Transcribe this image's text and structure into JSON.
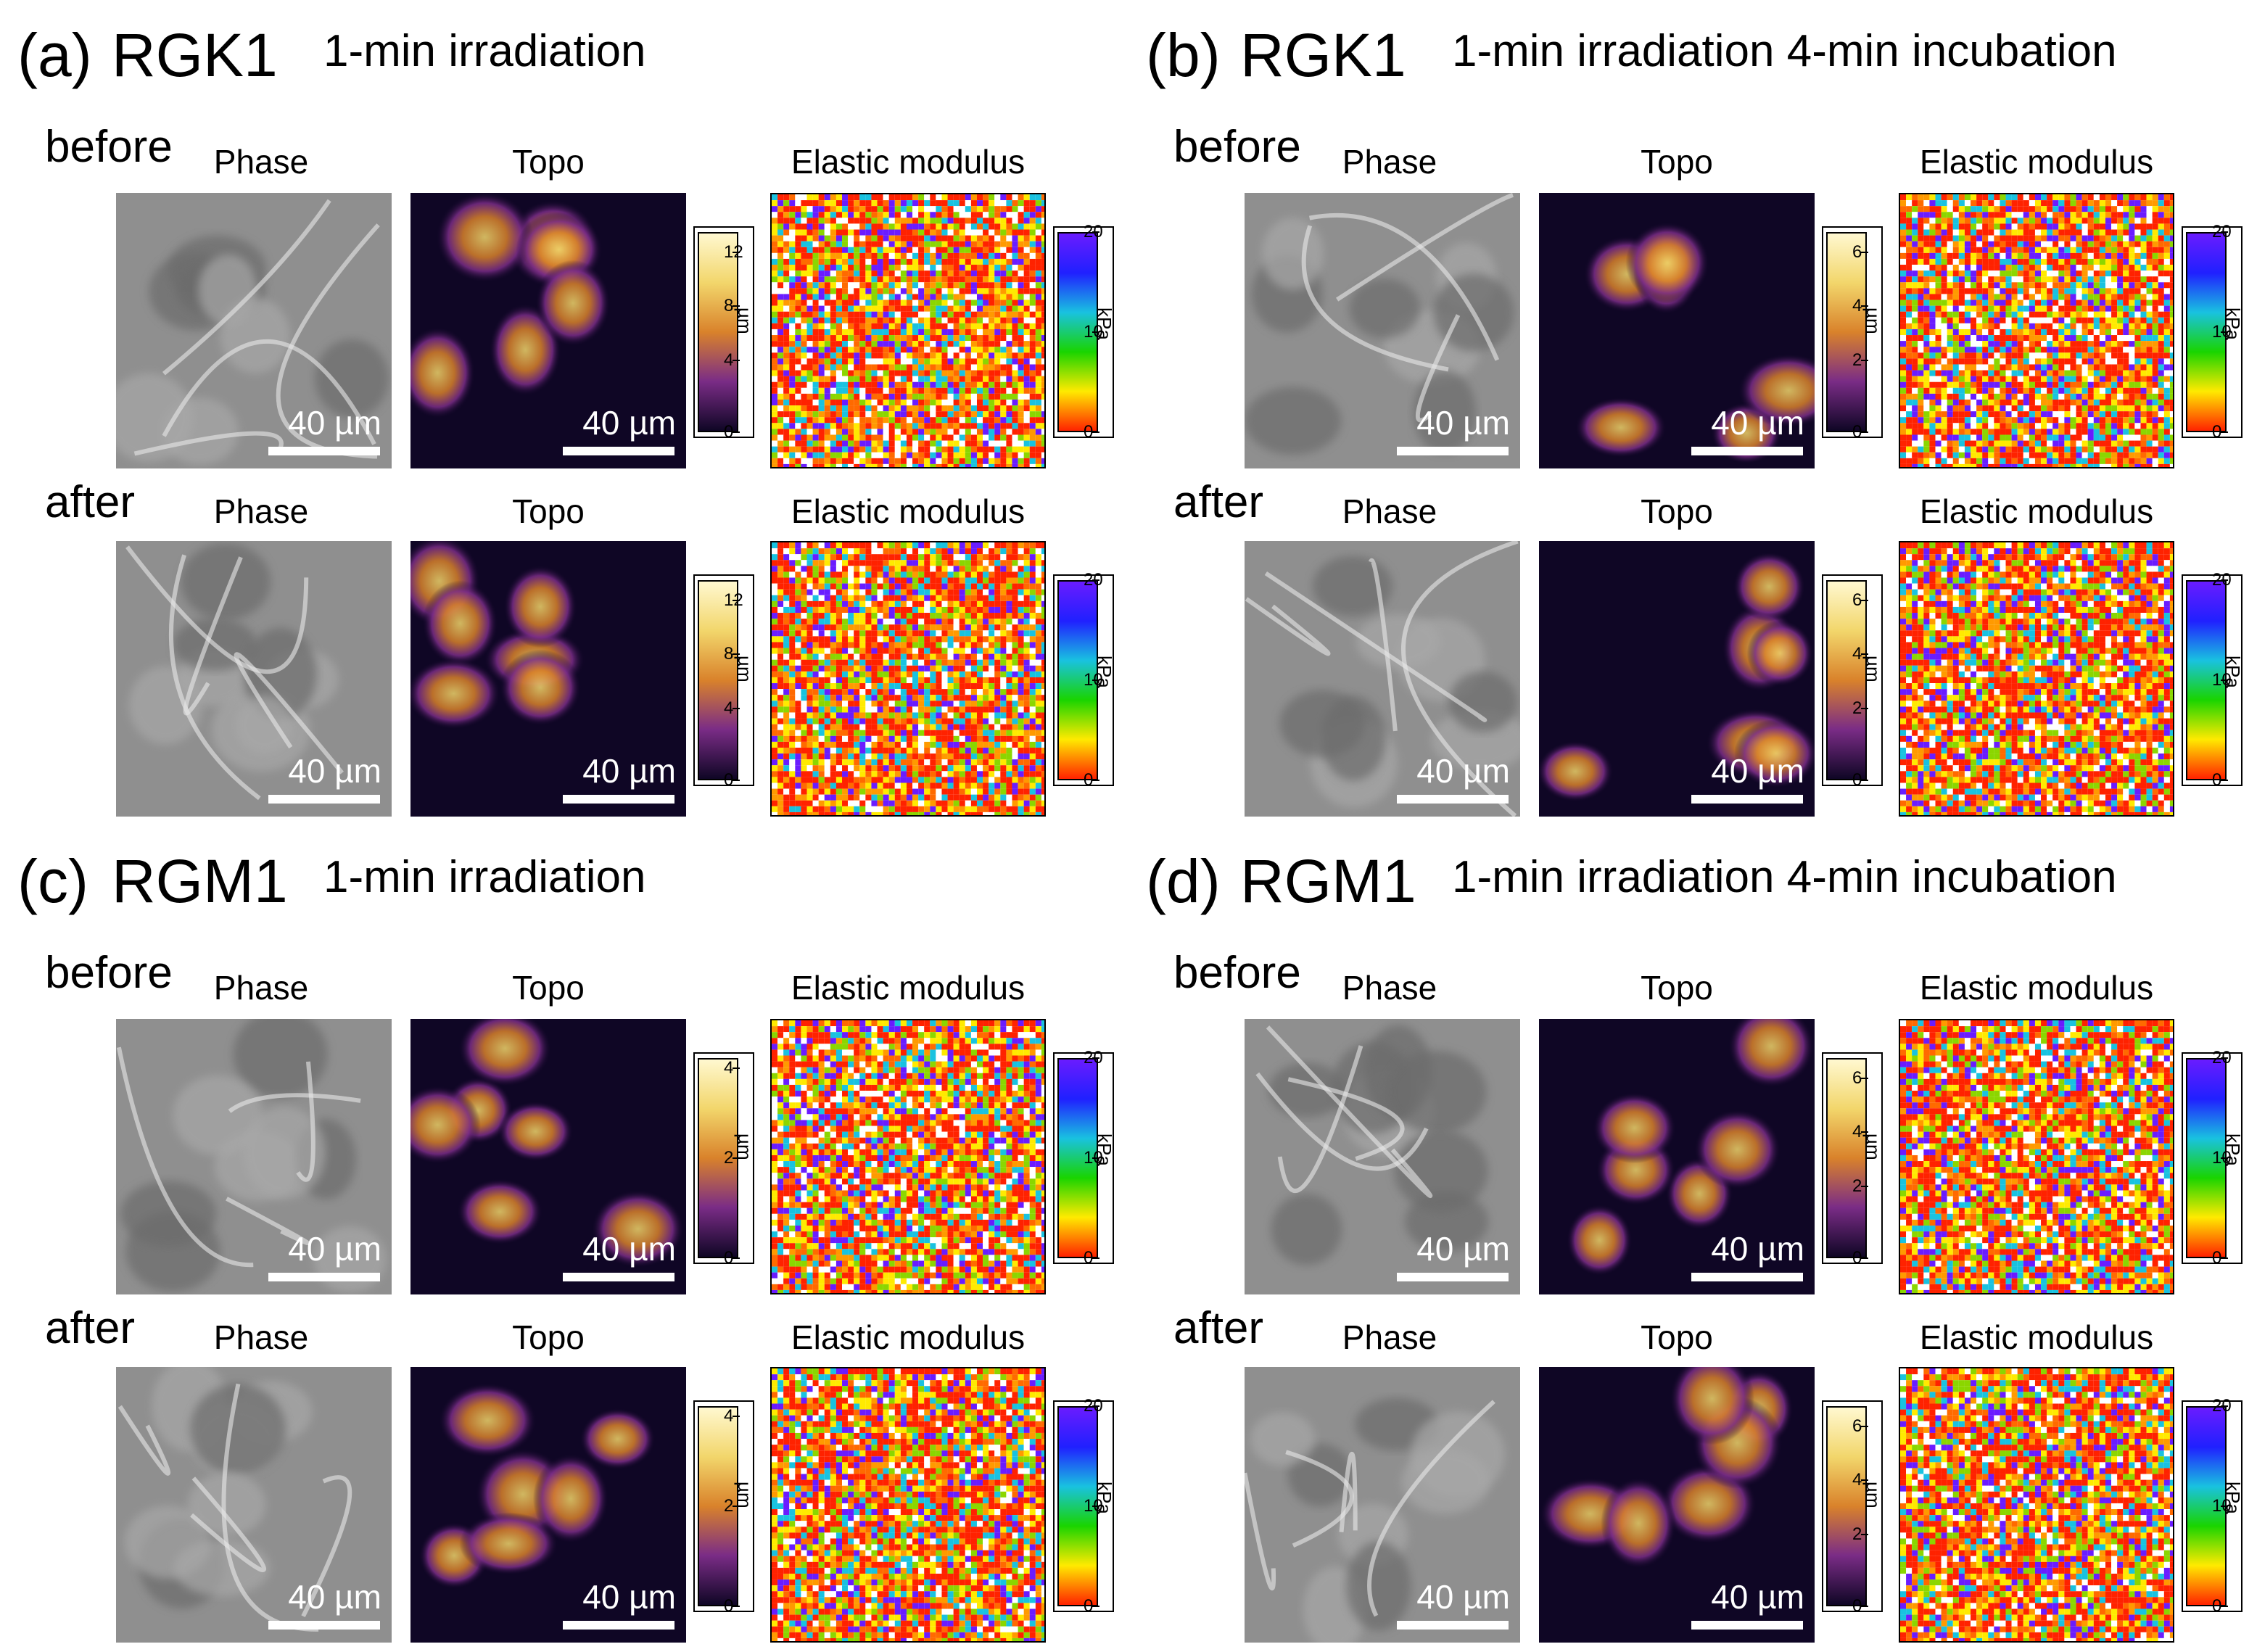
{
  "colors": {
    "topo_low": "#0f0625",
    "topo_mid": "#7a2c86",
    "topo_high": "#f2d66b",
    "elastic_low": "#ff2200",
    "elastic_mid": "#ffea00",
    "elastic_high": "#6a1cff",
    "phase_bg": "#8f8f8f"
  },
  "common": {
    "before_label": "before",
    "after_label": "after",
    "col_phase": "Phase",
    "col_topo": "Topo",
    "col_elastic": "Elastic modulus",
    "scale_bar": "40 µm",
    "topo_unit": "µm",
    "elastic_unit": "kPa",
    "elastic_ticks": [
      "20",
      "10",
      "0"
    ]
  },
  "panels": [
    {
      "letter": "(a)",
      "cell": "RGK1",
      "condition": "1-min irradiation",
      "topo_ticks": [
        "12",
        "8",
        "4",
        "0"
      ]
    },
    {
      "letter": "(b)",
      "cell": "RGK1",
      "condition": "1-min irradiation 4-min incubation",
      "topo_ticks": [
        "6",
        "4",
        "2",
        "0"
      ]
    },
    {
      "letter": "(c)",
      "cell": "RGM1",
      "condition": "1-min irradiation",
      "topo_ticks": [
        "4",
        "2",
        "0"
      ]
    },
    {
      "letter": "(d)",
      "cell": "RGM1",
      "condition": "1-min irradiation 4-min incubation",
      "topo_ticks": [
        "6",
        "4",
        "2",
        "0"
      ]
    }
  ]
}
